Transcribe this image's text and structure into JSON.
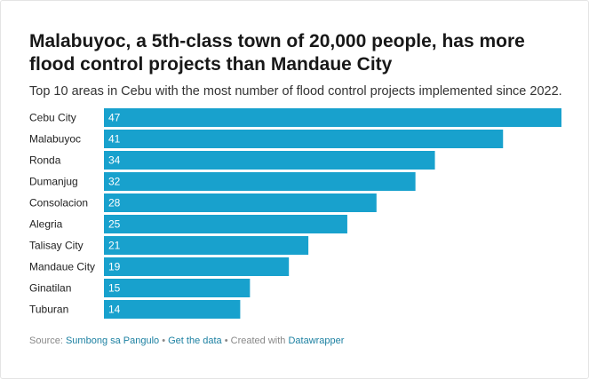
{
  "header": {
    "title": "Malabuyoc, a 5th-class town of 20,000 people, has more flood control projects than Mandaue City",
    "subtitle": "Top 10 areas in Cebu with the most number of flood control projects implemented since 2022."
  },
  "chart_data": {
    "type": "bar",
    "orientation": "horizontal",
    "title": "",
    "xlabel": "",
    "ylabel": "",
    "categories": [
      "Cebu City",
      "Malabuyoc",
      "Ronda",
      "Dumanjug",
      "Consolacion",
      "Alegria",
      "Talisay City",
      "Mandaue City",
      "Ginatilan",
      "Tuburan"
    ],
    "values": [
      47,
      41,
      34,
      32,
      28,
      25,
      21,
      19,
      15,
      14
    ],
    "xlim": [
      0,
      47
    ],
    "grid": false,
    "legend": "none",
    "bar_color": "#18a1cd",
    "value_label_color": "#ffffff"
  },
  "footer": {
    "source_prefix": "Source: ",
    "source_link": "Sumbong sa Pangulo",
    "separator1": " • ",
    "data_link": "Get the data",
    "separator2": " • Created with ",
    "tool_link": "Datawrapper"
  },
  "colors": {
    "bar": "#18a1cd",
    "link": "#1d81a2",
    "footer_text": "#888888"
  }
}
